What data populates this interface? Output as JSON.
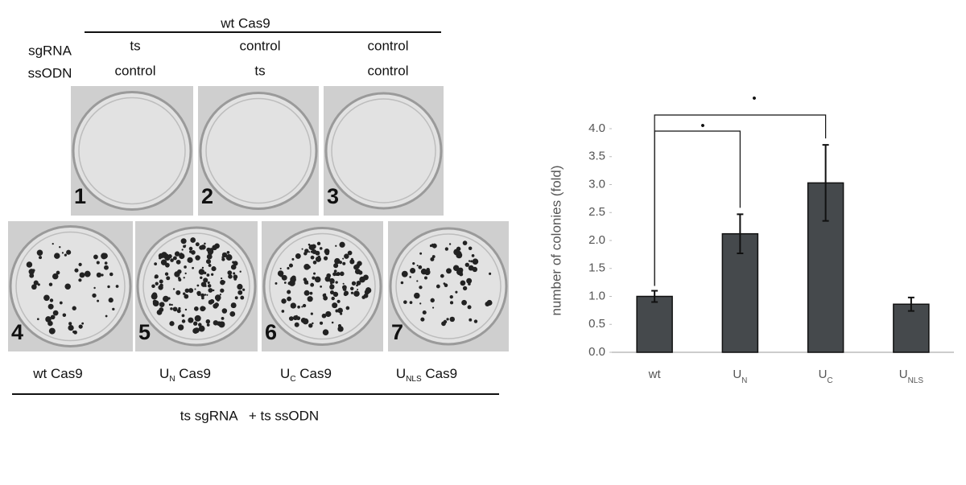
{
  "left_panel": {
    "top_label": "wt Cas9",
    "row_labels": [
      "sgRNA",
      "ssODN"
    ],
    "columns": [
      [
        "ts",
        "control"
      ],
      [
        "control",
        "ts"
      ],
      [
        "control",
        "control"
      ]
    ],
    "dishes_top": [
      "1",
      "2",
      "3"
    ],
    "dishes_bottom": [
      "4",
      "5",
      "6",
      "7"
    ],
    "bottom_labels": [
      {
        "prefix": "wt Cas9"
      },
      {
        "prefix": "U",
        "sub": "N",
        "suffix": " Cas9"
      },
      {
        "prefix": "U",
        "sub": "C",
        "suffix": " Cas9"
      },
      {
        "prefix": "U",
        "sub": "NLS",
        "suffix": " Cas9"
      }
    ],
    "footer": "ts sgRNA   + ts ssODN"
  },
  "chart_data": {
    "type": "bar",
    "y_label": "number of colonies (fold)",
    "categories": [
      "wt",
      "U",
      "U",
      "U"
    ],
    "category_subscripts": [
      null,
      "N",
      "C",
      "NLS"
    ],
    "values": [
      1.0,
      2.12,
      3.03,
      0.86
    ],
    "errors": [
      0.1,
      0.35,
      0.68,
      0.12
    ],
    "color": "#45494c",
    "ylim": [
      0,
      4
    ],
    "yticks": [
      {
        "value": 0,
        "label": "0.0"
      },
      0.5,
      {
        "value": 1,
        "label": "1.0"
      },
      1.5,
      {
        "value": 2,
        "label": "2.0"
      },
      2.5,
      {
        "value": 3,
        "label": "3.0"
      },
      3.5,
      {
        "value": 4,
        "label": "4.0"
      }
    ],
    "annotations": [
      "•",
      "•"
    ]
  }
}
